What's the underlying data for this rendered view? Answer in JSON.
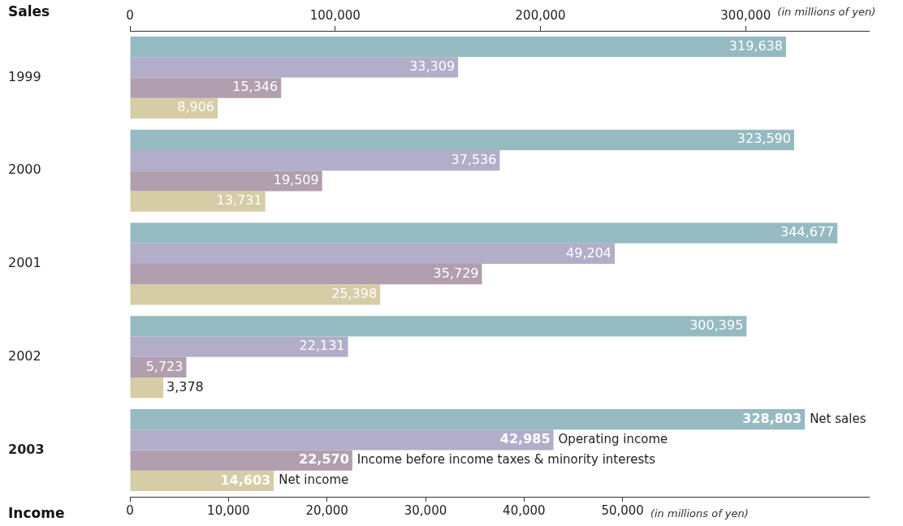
{
  "chart_data": {
    "type": "bar",
    "orientation": "horizontal",
    "xlabel": "Income",
    "x2label": "Sales",
    "categories": [
      "1999",
      "2000",
      "2001",
      "2002",
      "2003"
    ],
    "series": [
      {
        "name": "Net sales",
        "color": "#96bac1",
        "axis": "x2",
        "values": [
          319638,
          323590,
          344677,
          300395,
          328803
        ],
        "value_labels": [
          "319,638",
          "323,590",
          "344,677",
          "300,395",
          "328,803"
        ]
      },
      {
        "name": "Operating income",
        "color": "#b2adc9",
        "values": [
          33309,
          37536,
          49204,
          22131,
          42985
        ],
        "value_labels": [
          "33,309",
          "37,536",
          "49,204",
          "22,131",
          "42,985"
        ]
      },
      {
        "name": "Income before income taxes & minority interests",
        "color": "#b19eae",
        "values": [
          15346,
          19509,
          35729,
          5723,
          22570
        ],
        "value_labels": [
          "15,346",
          "19,509",
          "35,729",
          "5,723",
          "22,570"
        ]
      },
      {
        "name": "Net income",
        "color": "#d6cca6",
        "values": [
          8906,
          13731,
          25398,
          3378,
          14603
        ],
        "value_labels": [
          "8,906",
          "13,731",
          "25,398",
          "3,378",
          "14,603"
        ]
      }
    ],
    "xlim": [
      0,
      75000
    ],
    "xticks": [
      0,
      {
        "value": 10000,
        "label": "10,000"
      },
      {
        "value": 20000,
        "label": "20,000"
      },
      {
        "value": 30000,
        "label": "30,000"
      },
      {
        "value": 40000,
        "label": "40,000"
      },
      {
        "value": 50000,
        "label": "50,000"
      }
    ],
    "x2lim": [
      0,
      360000
    ],
    "x2ticks": [
      0,
      {
        "value": 100000,
        "label": "100,000"
      },
      {
        "value": 200000,
        "label": "200,000"
      },
      {
        "value": 300000,
        "label": "300,000"
      }
    ],
    "annotations": [
      "(in millions of yen)",
      "(in millions of yen)"
    ],
    "grid": false,
    "legend": false
  }
}
